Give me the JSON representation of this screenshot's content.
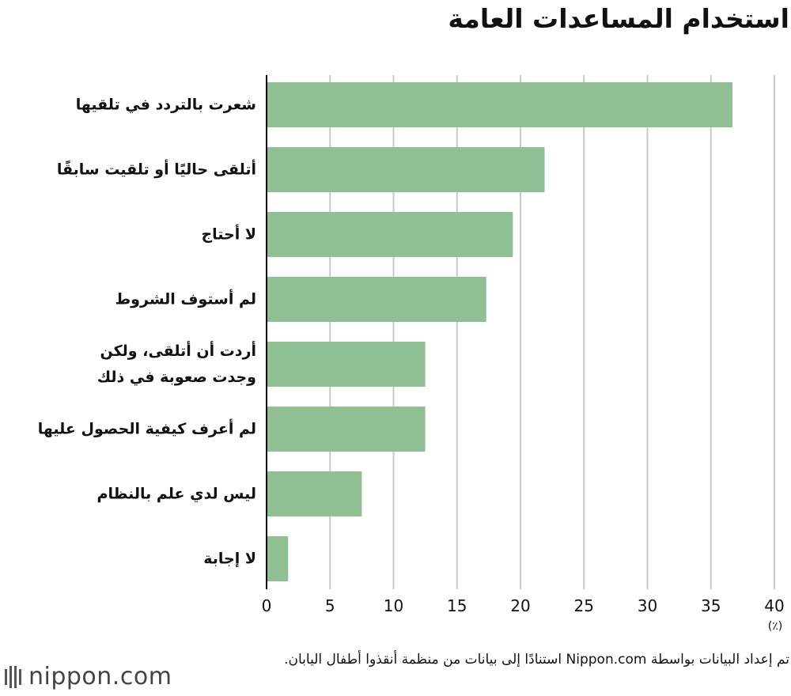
{
  "chart_data": {
    "type": "bar",
    "orientation": "horizontal",
    "title": "استخدام المساعدات العامة",
    "categories": [
      "شعرت بالتردد في تلقيها",
      "أتلقى حاليًا أو تلقيت سابقًا",
      "لا أحتاج",
      "لم أستوف الشروط",
      "أردت أن أتلقى، ولكن\nوجدت صعوبة في ذلك",
      "لم أعرف كيفية الحصول عليها",
      "ليس لدي علم بالنظام",
      "لا إجابة"
    ],
    "values": [
      36.7,
      21.9,
      19.4,
      17.3,
      12.5,
      12.5,
      7.5,
      1.7
    ],
    "xlim": [
      0,
      40
    ],
    "xticks": [
      "0",
      "5",
      "10",
      "15",
      "20",
      "25",
      "30",
      "35",
      "40"
    ],
    "unit": "(٪)",
    "bar_color": "#8fbf92",
    "grid": true
  },
  "source_note": "تم إعداد البيانات بواسطة Nippon.com استنادًا إلى بيانات من منظمة أنقذوا أطفال اليابان.",
  "logo": {
    "text": "nippon.com",
    "icon": "nippon-logo-icon"
  }
}
